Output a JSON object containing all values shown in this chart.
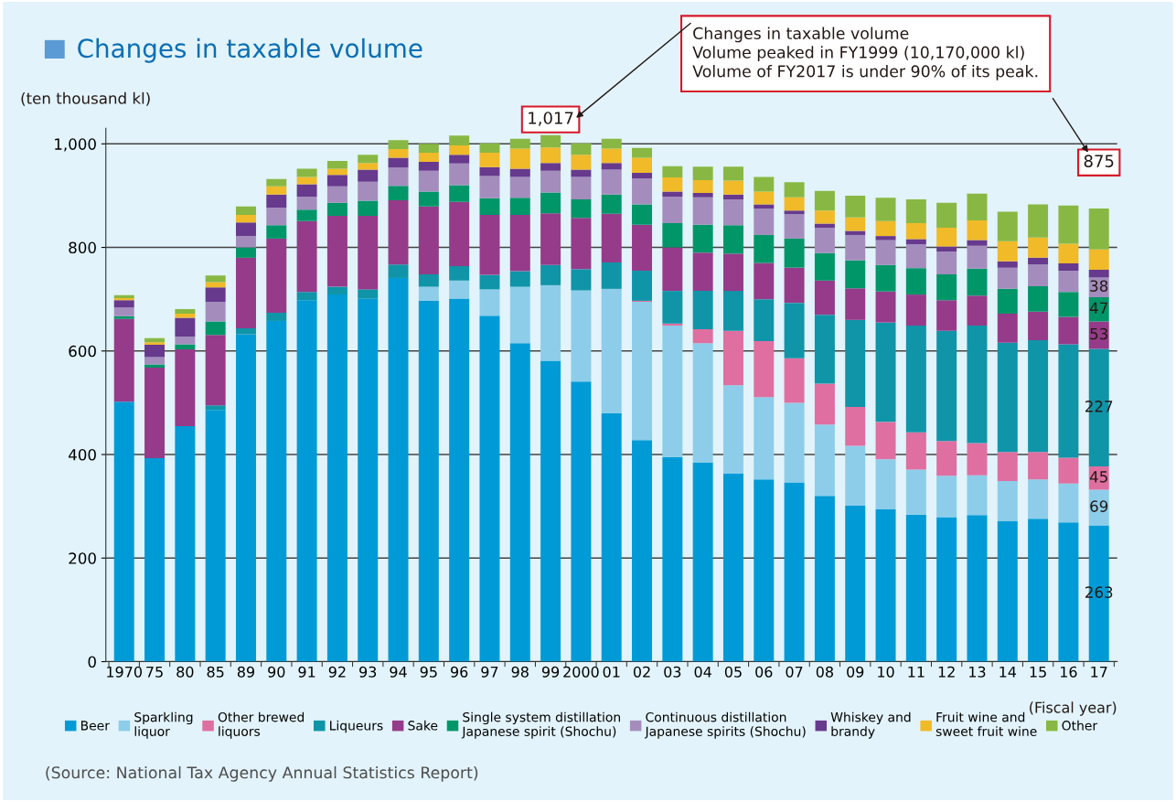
{
  "chart_data": {
    "type": "bar",
    "stacked": true,
    "title": "Changes in taxable volume",
    "ylabel": "(ten thousand kl)",
    "xlabel": "(Fiscal year)",
    "categories": [
      "1970",
      "75",
      "80",
      "85",
      "89",
      "90",
      "91",
      "92",
      "93",
      "94",
      "95",
      "96",
      "97",
      "98",
      "99",
      "2000",
      "01",
      "02",
      "03",
      "04",
      "05",
      "06",
      "07",
      "08",
      "09",
      "10",
      "11",
      "12",
      "13",
      "14",
      "15",
      "16",
      "17"
    ],
    "series": [
      {
        "name": "Beer",
        "color": "#009bd6",
        "values": [
          502,
          393,
          455,
          486,
          632,
          658,
          698,
          709,
          701,
          741,
          697,
          701,
          668,
          615,
          581,
          541,
          480,
          428,
          395,
          384,
          363,
          352,
          346,
          320,
          301,
          294,
          284,
          279,
          283,
          271,
          276,
          269,
          263
        ],
        "value_labels": [
          null,
          null,
          null,
          null,
          null,
          null,
          null,
          null,
          null,
          null,
          null,
          null,
          null,
          null,
          null,
          null,
          null,
          null,
          null,
          null,
          null,
          null,
          null,
          null,
          null,
          null,
          null,
          null,
          null,
          null,
          null,
          null,
          "263"
        ]
      },
      {
        "name": "Sparkling\nliquor",
        "color": "#8dcdea",
        "values": [
          0,
          0,
          0,
          0,
          0,
          0,
          0,
          0,
          0,
          0,
          27,
          35,
          51,
          109,
          146,
          176,
          240,
          267,
          254,
          231,
          171,
          159,
          154,
          138,
          116,
          97,
          87,
          80,
          77,
          78,
          76,
          75,
          69
        ],
        "value_labels": [
          null,
          null,
          null,
          null,
          null,
          null,
          null,
          null,
          null,
          null,
          null,
          null,
          null,
          null,
          null,
          null,
          null,
          null,
          null,
          null,
          null,
          null,
          null,
          null,
          null,
          null,
          null,
          null,
          null,
          null,
          null,
          null,
          "69"
        ]
      },
      {
        "name": "Other brewed\nliquors",
        "color": "#df6fa0",
        "values": [
          0,
          0,
          0,
          0,
          0,
          0,
          0,
          0,
          0,
          0,
          0,
          0,
          0,
          0,
          0,
          0,
          0,
          2,
          4,
          27,
          105,
          108,
          86,
          79,
          75,
          72,
          72,
          67,
          62,
          56,
          53,
          50,
          45
        ],
        "value_labels": [
          null,
          null,
          null,
          null,
          null,
          null,
          null,
          null,
          null,
          null,
          null,
          null,
          null,
          null,
          null,
          null,
          null,
          null,
          null,
          null,
          null,
          null,
          null,
          null,
          null,
          null,
          null,
          null,
          null,
          null,
          null,
          null,
          "45"
        ]
      },
      {
        "name": "Liqueurs",
        "color": "#1094a8",
        "values": [
          0,
          0,
          0,
          9,
          12,
          16,
          16,
          15,
          18,
          26,
          24,
          28,
          28,
          30,
          39,
          41,
          51,
          58,
          63,
          74,
          77,
          81,
          107,
          133,
          168,
          192,
          206,
          213,
          227,
          211,
          216,
          219,
          227
        ],
        "value_labels": [
          null,
          null,
          null,
          null,
          null,
          null,
          null,
          null,
          null,
          null,
          null,
          null,
          null,
          null,
          null,
          null,
          null,
          null,
          null,
          null,
          null,
          null,
          null,
          null,
          null,
          null,
          null,
          null,
          null,
          null,
          null,
          null,
          "227"
        ]
      },
      {
        "name": "Sake",
        "color": "#963b89",
        "values": [
          160,
          175,
          148,
          136,
          136,
          143,
          137,
          137,
          142,
          124,
          131,
          124,
          116,
          109,
          100,
          99,
          94,
          89,
          84,
          74,
          72,
          70,
          68,
          66,
          61,
          60,
          60,
          59,
          58,
          56,
          55,
          53,
          53
        ],
        "value_labels": [
          null,
          null,
          null,
          null,
          null,
          null,
          null,
          null,
          null,
          null,
          null,
          null,
          null,
          null,
          null,
          null,
          null,
          null,
          null,
          null,
          null,
          null,
          null,
          null,
          null,
          null,
          null,
          null,
          null,
          null,
          null,
          null,
          "53"
        ]
      },
      {
        "name": "Single system distillation\nJapanese spirit (Shochu)",
        "color": "#009668",
        "values": [
          5,
          6,
          10,
          26,
          20,
          26,
          22,
          25,
          29,
          28,
          29,
          32,
          32,
          33,
          40,
          36,
          37,
          39,
          47,
          54,
          55,
          54,
          56,
          53,
          54,
          51,
          51,
          50,
          52,
          48,
          49,
          48,
          47
        ],
        "value_labels": [
          null,
          null,
          null,
          null,
          null,
          null,
          null,
          null,
          null,
          null,
          null,
          null,
          null,
          null,
          null,
          null,
          null,
          null,
          null,
          null,
          null,
          null,
          null,
          null,
          null,
          null,
          null,
          null,
          null,
          null,
          null,
          null,
          "47"
        ]
      },
      {
        "name": "Continuous distillation\nJapanese spirits (Shochu)",
        "color": "#a48dbd",
        "values": [
          17,
          14,
          15,
          38,
          22,
          34,
          25,
          32,
          37,
          35,
          40,
          42,
          43,
          40,
          42,
          43,
          48,
          50,
          51,
          53,
          50,
          51,
          47,
          49,
          49,
          48,
          46,
          44,
          44,
          41,
          42,
          41,
          38
        ],
        "value_labels": [
          null,
          null,
          null,
          null,
          null,
          null,
          null,
          null,
          null,
          null,
          null,
          null,
          null,
          null,
          null,
          null,
          null,
          null,
          null,
          null,
          null,
          null,
          null,
          null,
          null,
          null,
          null,
          null,
          null,
          null,
          null,
          null,
          "38"
        ]
      },
      {
        "name": "Whiskey and\nbrandy",
        "color": "#673a8d",
        "values": [
          14,
          24,
          36,
          28,
          26,
          25,
          24,
          22,
          23,
          19,
          17,
          17,
          17,
          16,
          15,
          14,
          13,
          11,
          10,
          8,
          9,
          8,
          7,
          8,
          8,
          8,
          10,
          10,
          11,
          12,
          13,
          14,
          15
        ]
      },
      {
        "name": "Fruit wine and\nsweet fruit wine",
        "color": "#f0ba29",
        "values": [
          4,
          5,
          8,
          10,
          15,
          16,
          14,
          12,
          13,
          17,
          18,
          18,
          28,
          39,
          30,
          29,
          28,
          29,
          27,
          25,
          27,
          25,
          26,
          25,
          26,
          29,
          31,
          36,
          38,
          39,
          39,
          38,
          39
        ]
      },
      {
        "name": "Other",
        "color": "#88b843",
        "values": [
          6,
          8,
          9,
          13,
          16,
          14,
          16,
          15,
          16,
          17,
          17,
          19,
          18,
          19,
          24,
          22,
          19,
          19,
          22,
          26,
          27,
          28,
          29,
          38,
          42,
          45,
          46,
          48,
          52,
          57,
          64,
          74,
          79
        ]
      }
    ],
    "ylim": [
      0,
      1030
    ],
    "yticks": [
      0,
      200,
      400,
      600,
      800,
      {
        "value": 1000,
        "label": "1,000"
      }
    ],
    "grid": "y",
    "legend": "bottom",
    "annotations": [
      {
        "text": "1,017",
        "x": "99",
        "y": 1017
      },
      {
        "text": "875",
        "x": "17",
        "y": 875
      },
      "Changes in taxable volume\nVolume peaked in FY1999 (10,170,000 kl)\nVolume of FY2017 is under 90% of its peak.",
      "(Source: National Tax Agency Annual Statistics Report)"
    ]
  }
}
